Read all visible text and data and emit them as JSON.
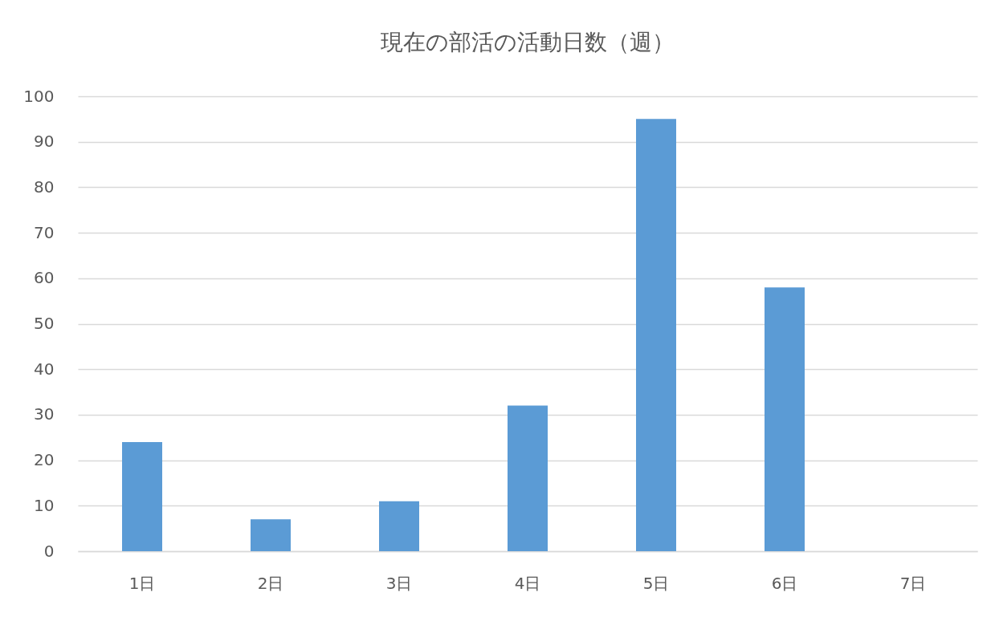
{
  "chart_data": {
    "type": "bar",
    "title": "現在の部活の活動日数（週）",
    "categories": [
      "1日",
      "2日",
      "3日",
      "4日",
      "5日",
      "6日",
      "7日"
    ],
    "values": [
      24,
      7,
      11,
      32,
      95,
      58,
      0
    ],
    "color": "#5b9bd5",
    "ylim": [
      0,
      100
    ],
    "yticks": [
      0,
      10,
      20,
      30,
      40,
      50,
      60,
      70,
      80,
      90,
      100
    ],
    "grid": "y"
  }
}
